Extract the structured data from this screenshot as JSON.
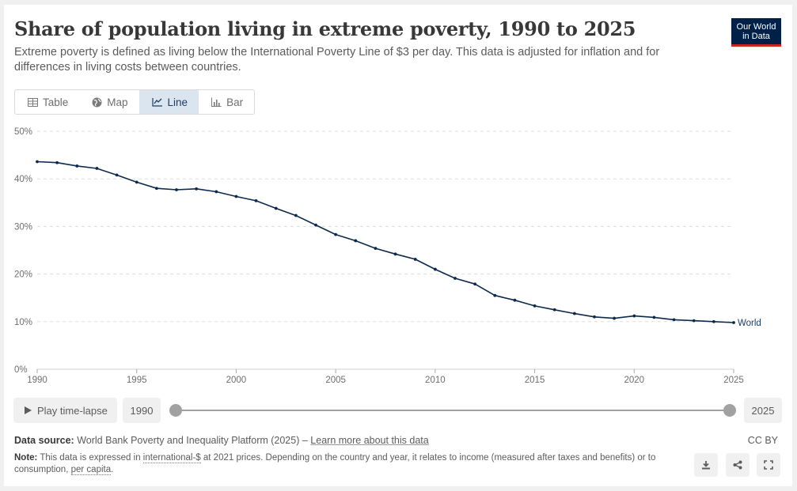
{
  "header": {
    "title": "Share of population living in extreme poverty, 1990 to 2025",
    "subtitle": "Extreme poverty is defined as living below the International Poverty Line of $3 per day. This data is adjusted for inflation and for differences in living costs between countries.",
    "logo_line1": "Our World",
    "logo_line2": "in Data"
  },
  "tabs": [
    {
      "label": "Table",
      "icon": "table-icon",
      "active": false
    },
    {
      "label": "Map",
      "icon": "globe-icon",
      "active": false
    },
    {
      "label": "Line",
      "icon": "line-chart-icon",
      "active": true
    },
    {
      "label": "Bar",
      "icon": "bar-chart-icon",
      "active": false
    }
  ],
  "chart_data": {
    "type": "line",
    "title": "Share of population living in extreme poverty, 1990 to 2025",
    "xlabel": "",
    "ylabel": "",
    "xlim": [
      1990,
      2025
    ],
    "ylim": [
      0,
      50
    ],
    "yticks": [
      {
        "value": 0,
        "label": "0%"
      },
      {
        "value": 10,
        "label": "10%"
      },
      {
        "value": 20,
        "label": "20%"
      },
      {
        "value": 30,
        "label": "30%"
      },
      {
        "value": 40,
        "label": "40%"
      },
      {
        "value": 50,
        "label": "50%"
      }
    ],
    "xticks": [
      1990,
      1995,
      2000,
      2005,
      2010,
      2015,
      2020,
      2025
    ],
    "grid": true,
    "legend": "end-of-line label",
    "series": [
      {
        "name": "World",
        "color": "#0c2a4d",
        "x": [
          1990,
          1991,
          1992,
          1993,
          1994,
          1995,
          1996,
          1997,
          1998,
          1999,
          2000,
          2001,
          2002,
          2003,
          2004,
          2005,
          2006,
          2007,
          2008,
          2009,
          2010,
          2011,
          2012,
          2013,
          2014,
          2015,
          2016,
          2017,
          2018,
          2019,
          2020,
          2021,
          2022,
          2023,
          2024,
          2025
        ],
        "y": [
          43.6,
          43.4,
          42.7,
          42.2,
          40.8,
          39.3,
          38.0,
          37.7,
          37.9,
          37.3,
          36.3,
          35.4,
          33.8,
          32.3,
          30.3,
          28.3,
          27.0,
          25.4,
          24.2,
          23.1,
          21.0,
          19.1,
          17.9,
          15.5,
          14.5,
          13.3,
          12.5,
          11.7,
          11.0,
          10.7,
          11.2,
          10.9,
          10.4,
          10.2,
          10.0,
          9.8
        ]
      }
    ]
  },
  "timeline": {
    "play_label": "Play time-lapse",
    "start_year": "1990",
    "end_year": "2025",
    "start_value": 1990,
    "end_value": 2025
  },
  "footer": {
    "source_label": "Data source:",
    "source_text": "World Bank Poverty and Inequality Platform (2025) –",
    "source_link": "Learn more about this data",
    "license": "CC BY",
    "note_label": "Note:",
    "note_part1": "This data is expressed in",
    "note_term1": "international-$",
    "note_part2": "at 2021 prices. Depending on the country and year, it relates to income (measured after taxes and benefits) or to consumption,",
    "note_term2": "per capita",
    "note_end": "."
  },
  "actions": [
    {
      "name": "download-icon"
    },
    {
      "name": "share-icon"
    },
    {
      "name": "fullscreen-icon"
    }
  ]
}
